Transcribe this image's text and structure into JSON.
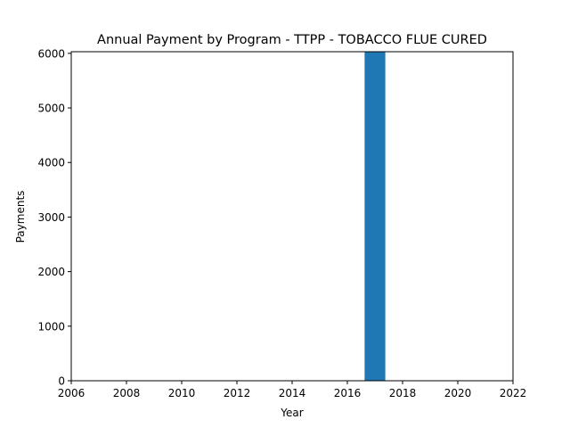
{
  "chart_data": {
    "type": "bar",
    "title": "Annual Payment by Program - TTPP - TOBACCO FLUE CURED",
    "xlabel": "Year",
    "ylabel": "Payments",
    "xlim": [
      2006,
      2022
    ],
    "ylim": [
      0,
      6030
    ],
    "xticks": [
      2006,
      2008,
      2010,
      2012,
      2014,
      2016,
      2018,
      2020,
      2022
    ],
    "yticks": [
      0,
      1000,
      2000,
      3000,
      4000,
      5000,
      6000
    ],
    "grid": false,
    "bars": [
      {
        "year": 2017,
        "value": 6030
      }
    ],
    "bar_color": "#1f77b4"
  }
}
